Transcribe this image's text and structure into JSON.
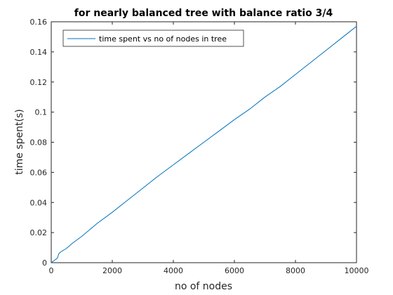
{
  "chart_data": {
    "type": "line",
    "title": "for nearly balanced tree with balance ratio 3/4",
    "xlabel": "no of nodes",
    "ylabel": "time spent(s)",
    "xlim": [
      0,
      10000
    ],
    "ylim": [
      0,
      0.16
    ],
    "xticks": [
      0,
      2000,
      4000,
      6000,
      8000,
      10000
    ],
    "xtick_labels": [
      "0",
      "2000",
      "4000",
      "6000",
      "8000",
      "10000"
    ],
    "yticks": [
      0,
      0.02,
      0.04,
      0.06,
      0.08,
      0.1,
      0.12,
      0.14,
      0.16
    ],
    "ytick_labels": [
      "0",
      "0.02",
      "0.04",
      "0.06",
      "0.08",
      "0.1",
      "0.12",
      "0.14",
      "0.16"
    ],
    "grid": false,
    "legend_position": "top-left",
    "series": [
      {
        "name": "time spent vs no of nodes in tree",
        "color": "#0072bd",
        "x": [
          0,
          100,
          200,
          250,
          300,
          500,
          700,
          1000,
          1500,
          2000,
          2500,
          3000,
          3500,
          4000,
          4500,
          5000,
          5500,
          6000,
          6500,
          7000,
          7500,
          8000,
          8500,
          9000,
          9500,
          10000
        ],
        "y": [
          0,
          0.0015,
          0.003,
          0.006,
          0.007,
          0.0095,
          0.013,
          0.0175,
          0.026,
          0.0335,
          0.0415,
          0.0495,
          0.0575,
          0.065,
          0.0725,
          0.08,
          0.0875,
          0.095,
          0.102,
          0.11,
          0.117,
          0.125,
          0.133,
          0.141,
          0.149,
          0.157
        ]
      }
    ]
  }
}
